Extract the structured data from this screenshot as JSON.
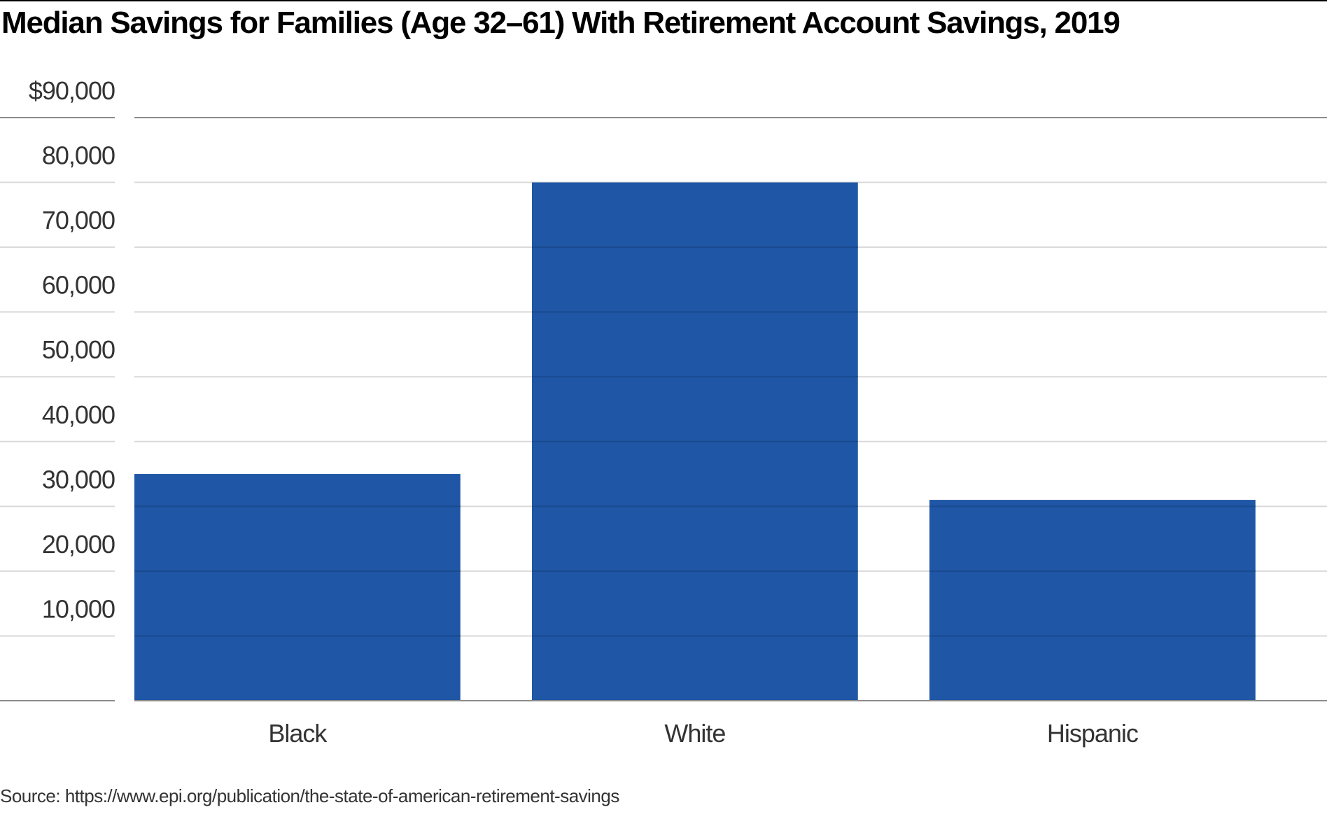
{
  "title": "Median Savings for Families (Age 32–61) With Retirement Account Savings, 2019",
  "source": "Source: https://www.epi.org/publication/the-state-of-american-retirement-savings",
  "colors": {
    "bar": "#1f56a5",
    "grid": "#d9d9d9",
    "axis": "#8c8c8c",
    "text": "#333333"
  },
  "chart_data": {
    "type": "bar",
    "title": "Median Savings for Families (Age 32–61) With Retirement Account Savings, 2019",
    "categories": [
      "Black",
      "White",
      "Hispanic"
    ],
    "values": [
      35000,
      80000,
      31000
    ],
    "ylim": [
      0,
      90000
    ],
    "yticks": [
      10000,
      20000,
      30000,
      40000,
      50000,
      60000,
      70000,
      80000,
      90000
    ],
    "ytick_labels": [
      "10,000",
      "20,000",
      "30,000",
      "40,000",
      "50,000",
      "60,000",
      "70,000",
      "80,000",
      "$90,000"
    ],
    "xlabel": "",
    "ylabel": "",
    "grid": true,
    "legend": "none"
  }
}
